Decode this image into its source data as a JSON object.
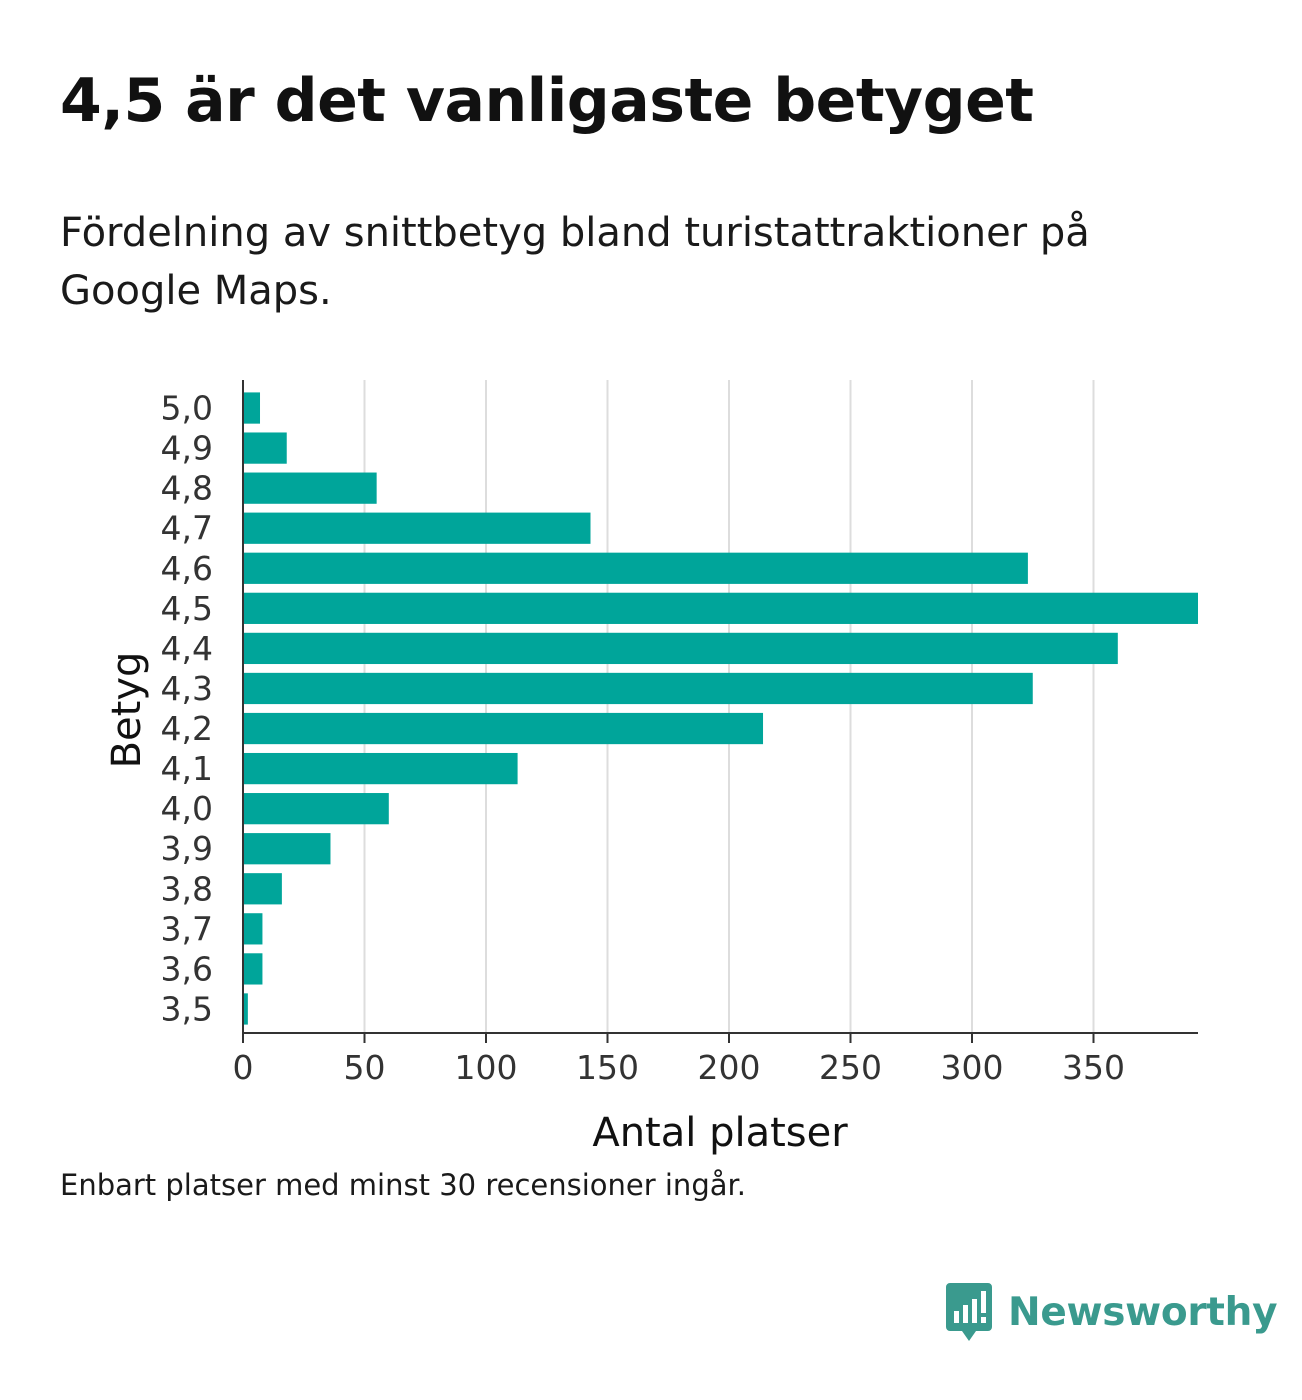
{
  "title": "4,5 är det vanligaste betyget",
  "subtitle": "Fördelning av snittbetyg bland turistattraktioner på Google Maps.",
  "note": "Enbart platser med minst 30 recensioner ingår.",
  "brand": {
    "name": "Newsworthy",
    "icon": "newsworthy-logo-icon",
    "color": "#3a9a8e"
  },
  "colors": {
    "bar": "#00a59a",
    "grid": "#dddddd",
    "axis": "#333333",
    "text": "#333333"
  },
  "chart_data": {
    "type": "bar",
    "orientation": "horizontal",
    "categories": [
      "5,0",
      "4,9",
      "4,8",
      "4,7",
      "4,6",
      "4,5",
      "4,4",
      "4,3",
      "4,2",
      "4,1",
      "4,0",
      "3,9",
      "3,8",
      "3,7",
      "3,6",
      "3,5"
    ],
    "values": [
      7,
      18,
      55,
      143,
      323,
      393,
      360,
      325,
      214,
      113,
      60,
      36,
      16,
      8,
      8,
      2
    ],
    "xlabel": "Antal platser",
    "ylabel": "Betyg",
    "xlim": [
      0,
      393
    ],
    "xticks": [
      0,
      50,
      100,
      150,
      200,
      250,
      300,
      350
    ],
    "grid": "vertical"
  }
}
